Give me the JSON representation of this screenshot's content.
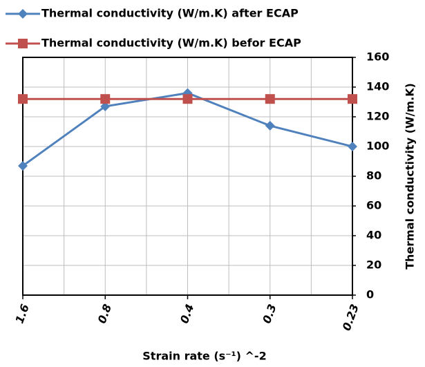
{
  "chart_data": {
    "type": "line",
    "categories": [
      "1.6",
      "0.8",
      "0.4",
      "0.3",
      "0.23"
    ],
    "series": [
      {
        "name": "Thermal conductivity (W/m.K) after ECAP",
        "color": "#4f81bd",
        "marker": "diamond",
        "values": [
          87,
          127,
          136,
          114,
          100
        ]
      },
      {
        "name": "Thermal conductivity (W/m.K) befor ECAP",
        "color": "#c0504d",
        "marker": "square",
        "values": [
          132,
          132,
          132,
          132,
          132
        ]
      }
    ],
    "x_label": "Strain rate (s⁻¹) ^-2",
    "y_label": "Thermal conductivity (W/m.K)",
    "ylim": [
      0,
      160
    ],
    "yticks": [
      0,
      20,
      40,
      60,
      80,
      100,
      120,
      140,
      160
    ],
    "y_axis_side": "right",
    "grid": true
  }
}
